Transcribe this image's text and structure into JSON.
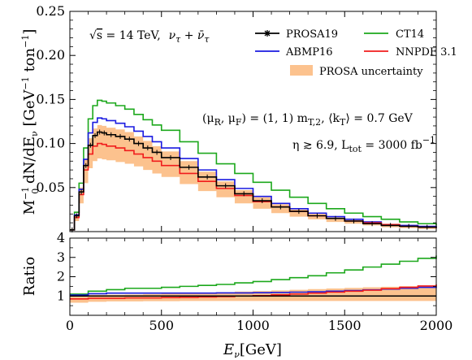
{
  "colors": {
    "prosa": "#000000",
    "ct14": "#1ca81c",
    "abmp16": "#1a1ae0",
    "nnpdf": "#f01c1c",
    "band": "#fcc28e"
  },
  "chart_data": [
    {
      "type": "line",
      "panel": "main",
      "step": true,
      "xlim": [
        0,
        2000
      ],
      "ylim": [
        0,
        0.25
      ],
      "xticks": [
        "0",
        "500",
        "1000",
        "1500",
        "2000"
      ],
      "yticks": [
        "0.05",
        "0.10",
        "0.15",
        "0.20",
        "0.25"
      ],
      "ylabel": {
        "pre": "M",
        "pre_sub": "0",
        "pre_sup": "−1",
        "mid": " dN/dE",
        "mid_sub": "ν",
        "post": " [GeV",
        "post_sup": "−1",
        "post2": " ton",
        "post2_sup": "−1",
        "post3": "]"
      },
      "x": [
        0,
        25,
        50,
        75,
        100,
        125,
        150,
        175,
        200,
        250,
        300,
        350,
        400,
        450,
        500,
        600,
        700,
        800,
        900,
        1000,
        1100,
        1200,
        1300,
        1400,
        1500,
        1600,
        1700,
        1800,
        1900,
        2000
      ],
      "series": [
        {
          "name": "PROSA19",
          "key": "prosa",
          "values": [
            0.002,
            0.018,
            0.045,
            0.075,
            0.098,
            0.109,
            0.113,
            0.112,
            0.11,
            0.108,
            0.105,
            0.1,
            0.095,
            0.09,
            0.084,
            0.073,
            0.062,
            0.052,
            0.043,
            0.035,
            0.028,
            0.023,
            0.018,
            0.015,
            0.012,
            0.009,
            0.007,
            0.006,
            0.005,
            0.004
          ]
        },
        {
          "name": "CT14",
          "key": "ct14",
          "values": [
            0.002,
            0.022,
            0.055,
            0.095,
            0.128,
            0.143,
            0.149,
            0.148,
            0.146,
            0.143,
            0.139,
            0.133,
            0.127,
            0.121,
            0.115,
            0.102,
            0.089,
            0.077,
            0.066,
            0.056,
            0.047,
            0.039,
            0.032,
            0.026,
            0.021,
            0.017,
            0.014,
            0.011,
            0.009,
            0.007
          ]
        },
        {
          "name": "ABMP16",
          "key": "abmp16",
          "values": [
            0.002,
            0.019,
            0.048,
            0.082,
            0.112,
            0.124,
            0.129,
            0.128,
            0.126,
            0.123,
            0.119,
            0.114,
            0.108,
            0.102,
            0.095,
            0.083,
            0.07,
            0.059,
            0.049,
            0.04,
            0.032,
            0.026,
            0.021,
            0.017,
            0.014,
            0.011,
            0.008,
            0.007,
            0.006,
            0.005
          ]
        },
        {
          "name": "NNPDF 3.1",
          "key": "nnpdf",
          "values": [
            0.002,
            0.016,
            0.042,
            0.07,
            0.088,
            0.097,
            0.1,
            0.099,
            0.097,
            0.095,
            0.092,
            0.088,
            0.084,
            0.08,
            0.075,
            0.066,
            0.057,
            0.049,
            0.041,
            0.034,
            0.028,
            0.023,
            0.018,
            0.015,
            0.012,
            0.01,
            0.008,
            0.006,
            0.005,
            0.004
          ]
        }
      ],
      "band": {
        "name": "PROSA uncertainty",
        "lower": [
          0.001,
          0.012,
          0.032,
          0.055,
          0.072,
          0.08,
          0.083,
          0.082,
          0.081,
          0.079,
          0.077,
          0.074,
          0.07,
          0.066,
          0.062,
          0.054,
          0.046,
          0.039,
          0.032,
          0.026,
          0.021,
          0.017,
          0.014,
          0.011,
          0.009,
          0.007,
          0.005,
          0.004,
          0.003,
          0.003
        ],
        "upper": [
          0.003,
          0.02,
          0.05,
          0.082,
          0.106,
          0.117,
          0.121,
          0.12,
          0.118,
          0.116,
          0.113,
          0.108,
          0.103,
          0.097,
          0.091,
          0.08,
          0.068,
          0.057,
          0.047,
          0.039,
          0.031,
          0.025,
          0.02,
          0.016,
          0.013,
          0.01,
          0.008,
          0.007,
          0.005,
          0.004
        ]
      },
      "annotations": {
        "energy_pre": "√",
        "energy_s": "s",
        "energy_post": " = 14 TeV,",
        "nu_text": "ν",
        "nu_sub": "τ",
        "nu_plus": " + ",
        "nubar_text": "ν̄",
        "nubar_sub": "τ",
        "scale_a": "(μ",
        "scale_a_sub": "R",
        "scale_b": ", μ",
        "scale_b_sub": "F",
        "scale_c": ") = (1, 1) m",
        "scale_c_sub": "T,2",
        "scale_d": ", ⟨k",
        "scale_d_sub": "T",
        "scale_e": "⟩ = 0.7 GeV",
        "eta_a": "η ≳ 6.9,  L",
        "eta_a_sub": "tot",
        "eta_b": " = 3000 fb",
        "eta_b_sup": "−1"
      }
    },
    {
      "type": "line",
      "panel": "ratio",
      "step": true,
      "xlim": [
        0,
        2000
      ],
      "ylim": [
        0,
        4
      ],
      "xticks": [
        "0",
        "500",
        "1000",
        "1500",
        "2000"
      ],
      "yticks": [
        "1",
        "2",
        "3",
        "4"
      ],
      "ylabel": "Ratio",
      "xlabel": {
        "main": "E",
        "main_sub": "ν",
        "rest": "[GeV]"
      },
      "x": [
        0,
        100,
        200,
        300,
        400,
        500,
        600,
        700,
        800,
        900,
        1000,
        1100,
        1200,
        1300,
        1400,
        1500,
        1600,
        1700,
        1800,
        1900,
        2000
      ],
      "series": [
        {
          "name": "PROSA19",
          "key": "prosa",
          "values": [
            1.0,
            1.0,
            1.0,
            1.0,
            1.0,
            1.0,
            1.0,
            1.0,
            1.0,
            1.0,
            1.0,
            1.0,
            1.0,
            1.0,
            1.0,
            1.0,
            1.0,
            1.0,
            1.0,
            1.0,
            1.0
          ]
        },
        {
          "name": "CT14",
          "key": "ct14",
          "values": [
            1.1,
            1.25,
            1.33,
            1.4,
            1.4,
            1.45,
            1.5,
            1.55,
            1.6,
            1.68,
            1.75,
            1.85,
            1.95,
            2.05,
            2.2,
            2.35,
            2.5,
            2.65,
            2.8,
            2.95,
            3.1
          ]
        },
        {
          "name": "ABMP16",
          "key": "abmp16",
          "values": [
            1.05,
            1.12,
            1.15,
            1.15,
            1.15,
            1.15,
            1.15,
            1.15,
            1.16,
            1.16,
            1.17,
            1.18,
            1.2,
            1.22,
            1.25,
            1.28,
            1.32,
            1.36,
            1.4,
            1.45,
            1.5
          ]
        },
        {
          "name": "NNPDF 3.1",
          "key": "nnpdf",
          "values": [
            0.85,
            0.88,
            0.88,
            0.9,
            0.9,
            0.92,
            0.93,
            0.95,
            0.97,
            1.0,
            1.02,
            1.06,
            1.1,
            1.15,
            1.2,
            1.25,
            1.3,
            1.38,
            1.45,
            1.52,
            1.6
          ]
        }
      ],
      "band": {
        "name": "PROSA uncertainty",
        "lower": [
          0.65,
          0.7,
          0.72,
          0.72,
          0.73,
          0.73,
          0.74,
          0.74,
          0.74,
          0.74,
          0.74,
          0.74,
          0.74,
          0.74,
          0.74,
          0.74,
          0.74,
          0.74,
          0.74,
          0.74,
          0.74
        ],
        "upper": [
          1.05,
          1.06,
          1.07,
          1.08,
          1.1,
          1.12,
          1.14,
          1.17,
          1.2,
          1.23,
          1.26,
          1.29,
          1.32,
          1.36,
          1.39,
          1.42,
          1.45,
          1.48,
          1.51,
          1.54,
          1.56
        ]
      }
    }
  ]
}
